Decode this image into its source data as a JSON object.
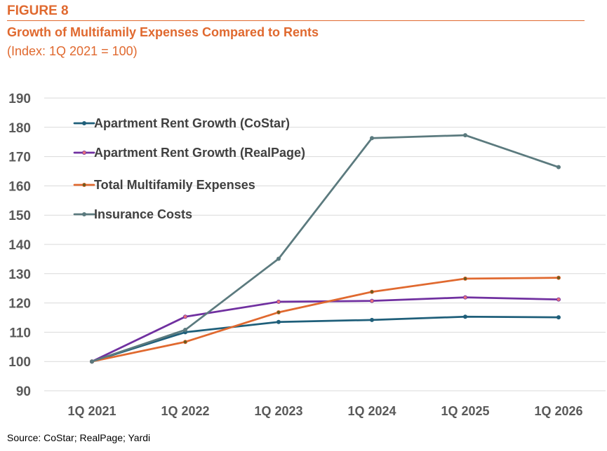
{
  "header": {
    "figure_label": "FIGURE 8",
    "title": "Growth of Multifamily Expenses Compared to Rents",
    "subtitle": "(Index: 1Q 2021 = 100)"
  },
  "source": "Source: CoStar; RealPage; Yardi",
  "chart_data": {
    "type": "line",
    "title": "Growth of Multifamily Expenses Compared to Rents",
    "subtitle": "(Index: 1Q 2021 = 100)",
    "xlabel": "",
    "ylabel": "",
    "categories": [
      "1Q 2021",
      "1Q 2022",
      "1Q 2023",
      "1Q 2024",
      "1Q 2025",
      "1Q 2026"
    ],
    "ylim": [
      90,
      190
    ],
    "yticks": [
      90,
      100,
      110,
      120,
      130,
      140,
      150,
      160,
      170,
      180,
      190
    ],
    "grid": true,
    "legend_position": "top-left",
    "series": [
      {
        "name": "Apartment Rent Growth (CoStar)",
        "color": "#1F5F7A",
        "marker_color": "#1F5F7A",
        "values": [
          100,
          110,
          113.5,
          114.2,
          115.3,
          115.1
        ]
      },
      {
        "name": "Apartment Rent Growth (RealPage)",
        "color": "#7030A0",
        "marker_color": "#E8707A",
        "values": [
          100,
          115.3,
          120.4,
          120.7,
          121.9,
          121.2
        ]
      },
      {
        "name": "Total Multifamily Expenses",
        "color": "#E0692F",
        "marker_color": "#6B5A1E",
        "values": [
          100,
          106.7,
          116.8,
          123.8,
          128.3,
          128.6
        ]
      },
      {
        "name": "Insurance Costs",
        "color": "#5B7A7E",
        "marker_color": "#5B7A7E",
        "values": [
          100,
          110.8,
          135.1,
          176.3,
          177.3,
          166.4
        ]
      }
    ]
  }
}
